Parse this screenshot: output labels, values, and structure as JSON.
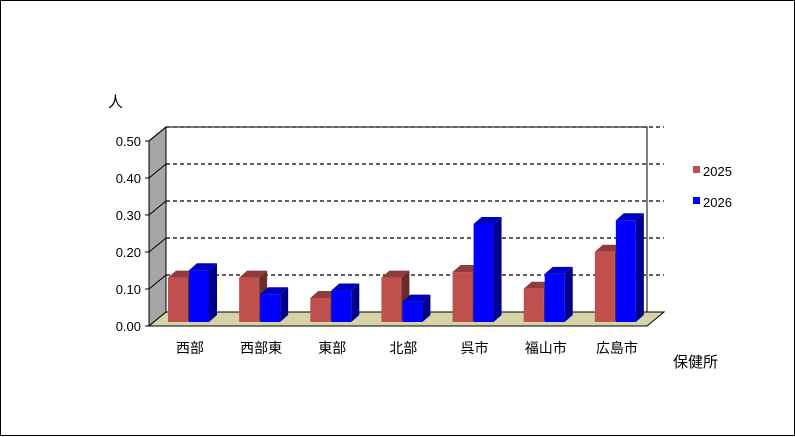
{
  "chart_data": {
    "type": "bar",
    "ylabel": "人",
    "xlabel": "保健所",
    "categories": [
      "西部",
      "西部東",
      "東部",
      "北部",
      "呉市",
      "福山市",
      "広島市"
    ],
    "ylim": [
      0,
      0.5
    ],
    "yticks": [
      "0.00",
      "0.10",
      "0.20",
      "0.30",
      "0.40",
      "0.50"
    ],
    "grid": true,
    "legend_position": "right",
    "series": [
      {
        "name": "2025",
        "color": "#c0504d",
        "values": [
          0.12,
          0.12,
          0.065,
          0.12,
          0.135,
          0.09,
          0.19
        ]
      },
      {
        "name": "2026",
        "color": "#0000ff",
        "values": [
          0.14,
          0.075,
          0.085,
          0.055,
          0.265,
          0.13,
          0.275
        ]
      }
    ]
  }
}
